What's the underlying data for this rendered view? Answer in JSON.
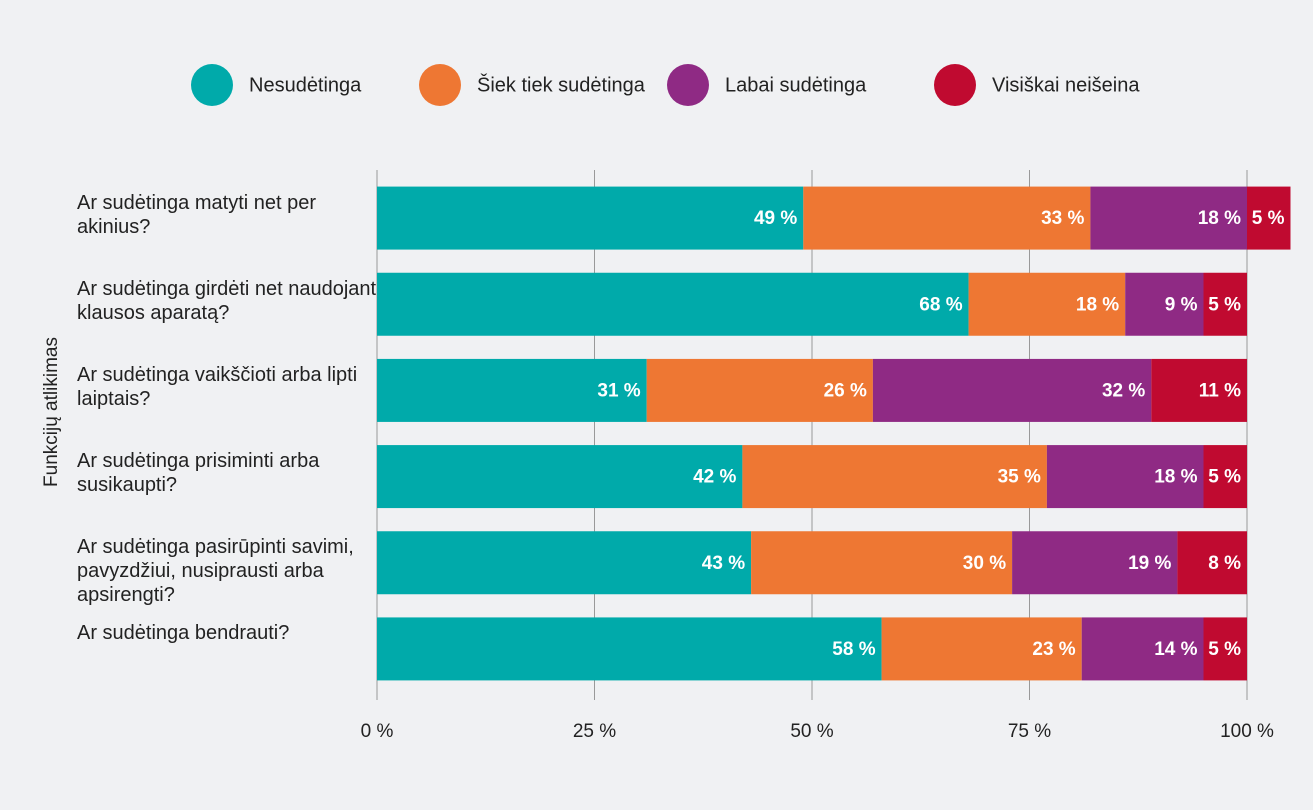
{
  "chart_data": {
    "type": "stacked-barh",
    "ylabel": "Funkcijų atlikimas",
    "categories": [
      "Ar sudėtinga matyti net per akinius?",
      "Ar sudėtinga girdėti net naudojant klausos aparatą?",
      "Ar sudėtinga vaikščioti arba lipti laiptais?",
      "Ar sudėtinga prisiminti arba susikaupti?",
      "Ar sudėtinga pasirūpinti savimi, pavyzdžiui, nusiprausti arba apsirengti?",
      "Ar sudėtinga bendrauti?"
    ],
    "series": [
      {
        "name": "Nesudėtinga",
        "color": "#00aaaa",
        "values": [
          49,
          68,
          31,
          42,
          43,
          58
        ],
        "value_labels": [
          "49 %",
          "68 %",
          "31 %",
          "42 %",
          "43 %",
          "58 %"
        ]
      },
      {
        "name": "Šiek tiek sudėtinga",
        "color": "#ee7733",
        "values": [
          33,
          18,
          26,
          35,
          30,
          23
        ],
        "value_labels": [
          "33 %",
          "18 %",
          "26 %",
          "35 %",
          "30 %",
          "23 %"
        ]
      },
      {
        "name": "Labai sudėtinga",
        "color": "#8f2a84",
        "values": [
          18,
          9,
          32,
          18,
          19,
          14
        ],
        "value_labels": [
          "18 %",
          "9 %",
          "32 %",
          "18 %",
          "19 %",
          "14 %"
        ]
      },
      {
        "name": "Visiškai neišeina",
        "color": "#c00a30",
        "values": [
          5,
          5,
          11,
          5,
          8,
          5
        ],
        "value_labels": [
          "5 %",
          "5 %",
          "11 %",
          "5 %",
          "8 %",
          "5 %"
        ]
      }
    ],
    "xlim": [
      0,
      100
    ],
    "xticks": [
      {
        "value": 0,
        "label": "0 %"
      },
      {
        "value": 25,
        "label": "25 %"
      },
      {
        "value": 50,
        "label": "50 %"
      },
      {
        "value": 75,
        "label": "75 %"
      },
      {
        "value": 100,
        "label": "100 %"
      }
    ],
    "grid": true,
    "legend": "top"
  }
}
